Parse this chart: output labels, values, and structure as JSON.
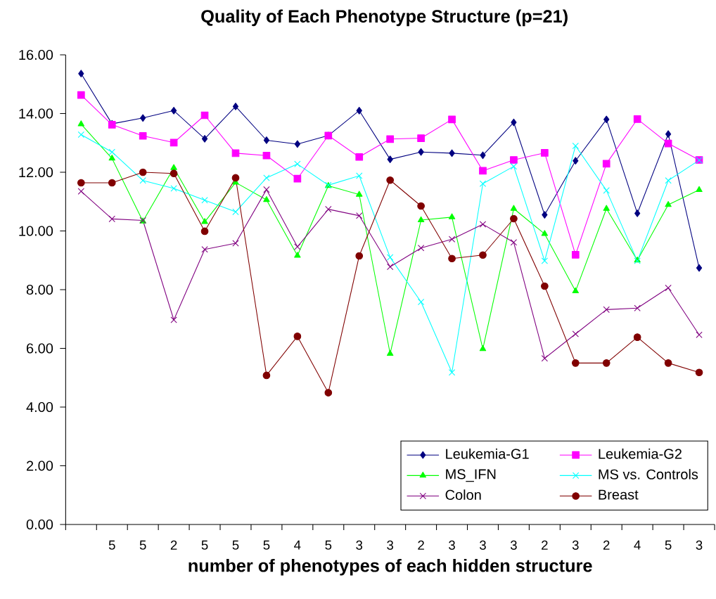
{
  "chart_data": {
    "type": "line",
    "title": "Quality of Each Phenotype Structure (p=21)",
    "xlabel": "number of phenotypes of each hidden structure",
    "categories": [
      null,
      "5",
      "5",
      "2",
      "5",
      "5",
      "5",
      "4",
      "5",
      "3",
      "3",
      "2",
      "3",
      "3",
      "3",
      "2",
      "3",
      "2",
      "4",
      "5",
      "3"
    ],
    "series": [
      {
        "name": "Leukemia-G1",
        "color": "#000080",
        "marker": "diamond",
        "values": [
          15.36,
          13.65,
          13.85,
          14.1,
          13.14,
          14.24,
          13.09,
          12.96,
          13.25,
          14.1,
          12.44,
          12.69,
          12.65,
          12.58,
          13.7,
          10.55,
          12.39,
          13.8,
          10.6,
          13.3,
          8.74
        ]
      },
      {
        "name": "Leukemia-G2",
        "color": "#ff00ff",
        "marker": "square",
        "values": [
          14.63,
          13.62,
          13.24,
          13.01,
          13.94,
          12.65,
          12.57,
          11.78,
          13.25,
          12.52,
          13.13,
          13.16,
          13.8,
          12.05,
          12.42,
          12.66,
          9.19,
          12.29,
          13.81,
          12.98,
          12.42
        ]
      },
      {
        "name": "MS_IFN",
        "color": "#00ff00",
        "marker": "triangle",
        "values": [
          13.64,
          12.47,
          10.33,
          12.15,
          10.31,
          11.65,
          11.06,
          9.16,
          11.54,
          11.24,
          5.82,
          10.37,
          10.47,
          5.98,
          10.76,
          9.9,
          7.95,
          10.76,
          9.0,
          10.89,
          11.4
        ]
      },
      {
        "name": "MS vs. Controls",
        "color": "#00ffff",
        "marker": "cross",
        "values": [
          13.28,
          12.69,
          11.72,
          11.45,
          11.05,
          10.65,
          11.81,
          12.28,
          11.56,
          11.88,
          9.1,
          7.58,
          5.18,
          11.61,
          12.2,
          8.98,
          12.9,
          11.38,
          8.98,
          11.72,
          12.41
        ]
      },
      {
        "name": "Colon",
        "color": "#800080",
        "marker": "cross",
        "values": [
          11.35,
          10.41,
          10.36,
          6.97,
          9.37,
          9.58,
          11.41,
          9.46,
          10.74,
          10.52,
          8.78,
          9.42,
          9.72,
          10.23,
          9.61,
          5.66,
          6.49,
          7.32,
          7.37,
          8.06,
          6.46
        ]
      },
      {
        "name": "Breast",
        "color": "#800000",
        "marker": "circle",
        "values": [
          11.64,
          11.64,
          12.0,
          11.96,
          9.99,
          11.81,
          5.08,
          6.41,
          4.49,
          9.15,
          11.73,
          10.85,
          9.06,
          9.18,
          10.42,
          8.12,
          5.5,
          5.5,
          6.38,
          5.5,
          5.18
        ]
      }
    ],
    "ylim": [
      0,
      16
    ],
    "yticks": [
      {
        "value": 0,
        "label": "0.00"
      },
      {
        "value": 2,
        "label": "2.00"
      },
      {
        "value": 4,
        "label": "4.00"
      },
      {
        "value": 6,
        "label": "6.00"
      },
      {
        "value": 8,
        "label": "8.00"
      },
      {
        "value": 10,
        "label": "10.00"
      },
      {
        "value": 12,
        "label": "12.00"
      },
      {
        "value": 14,
        "label": "14.00"
      },
      {
        "value": 16,
        "label": "16.00"
      }
    ],
    "grid": false,
    "legend": "bottom right",
    "line_style": "solid"
  }
}
